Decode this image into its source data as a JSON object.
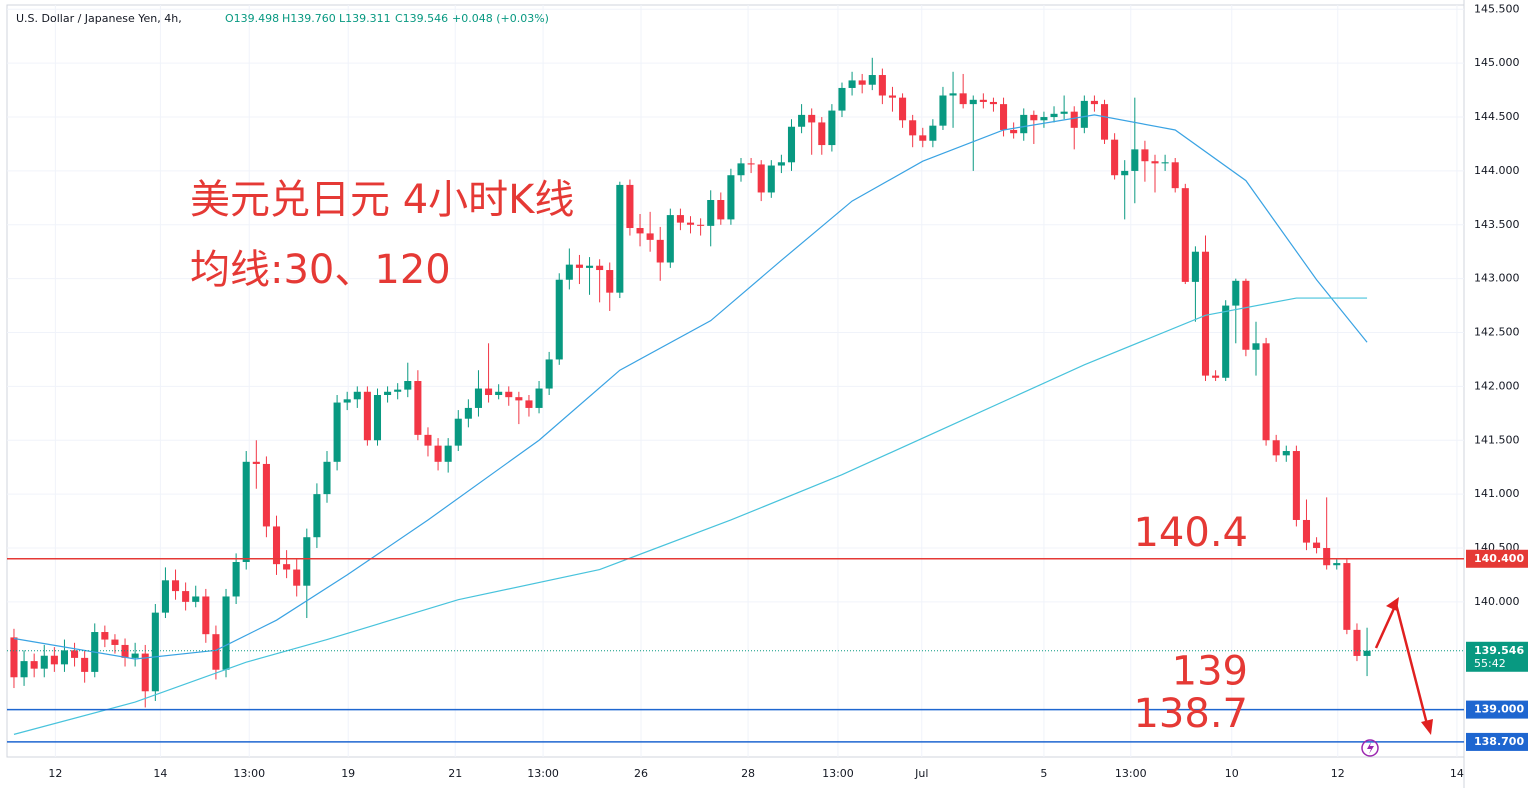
{
  "chart_data": {
    "type": "candlestick",
    "header": {
      "symbol": "U.S. Dollar / Japanese Yen, 4h,",
      "open": "O139.498",
      "high": "H139.760",
      "low": "L139.311",
      "close": "C139.546",
      "change": "+0.048 (+0.03%)"
    },
    "annotations": [
      "美元兑日元 4小时K线",
      "均线:30、120"
    ],
    "up_color": "#089981",
    "down_color": "#f23645",
    "ohlc": [
      [
        139.67,
        139.75,
        139.2,
        139.3
      ],
      [
        139.3,
        139.55,
        139.22,
        139.45
      ],
      [
        139.45,
        139.52,
        139.3,
        139.38
      ],
      [
        139.38,
        139.6,
        139.3,
        139.5
      ],
      [
        139.5,
        139.58,
        139.35,
        139.42
      ],
      [
        139.42,
        139.65,
        139.35,
        139.55
      ],
      [
        139.55,
        139.62,
        139.4,
        139.48
      ],
      [
        139.48,
        139.55,
        139.25,
        139.35
      ],
      [
        139.35,
        139.8,
        139.3,
        139.72
      ],
      [
        139.72,
        139.78,
        139.58,
        139.65
      ],
      [
        139.65,
        139.7,
        139.52,
        139.6
      ],
      [
        139.6,
        139.66,
        139.4,
        139.48
      ],
      [
        139.48,
        139.62,
        139.4,
        139.52
      ],
      [
        139.52,
        139.6,
        139.02,
        139.17
      ],
      [
        139.17,
        139.98,
        139.08,
        139.9
      ],
      [
        139.9,
        140.32,
        139.85,
        140.2
      ],
      [
        140.2,
        140.3,
        140.02,
        140.1
      ],
      [
        140.1,
        140.18,
        139.92,
        140.0
      ],
      [
        140.0,
        140.15,
        139.95,
        140.05
      ],
      [
        140.05,
        140.12,
        139.62,
        139.7
      ],
      [
        139.7,
        139.78,
        139.28,
        139.37
      ],
      [
        139.37,
        140.12,
        139.3,
        140.05
      ],
      [
        140.05,
        140.45,
        139.98,
        140.37
      ],
      [
        140.37,
        141.4,
        140.3,
        141.3
      ],
      [
        141.3,
        141.5,
        141.05,
        141.28
      ],
      [
        141.28,
        141.35,
        140.6,
        140.7
      ],
      [
        140.7,
        140.8,
        140.25,
        140.35
      ],
      [
        140.35,
        140.48,
        140.22,
        140.3
      ],
      [
        140.3,
        140.4,
        140.05,
        140.15
      ],
      [
        140.15,
        140.68,
        139.85,
        140.6
      ],
      [
        140.6,
        141.1,
        140.5,
        141.0
      ],
      [
        141.0,
        141.4,
        140.92,
        141.3
      ],
      [
        141.3,
        141.92,
        141.22,
        141.85
      ],
      [
        141.85,
        141.95,
        141.78,
        141.88
      ],
      [
        141.88,
        142.0,
        141.8,
        141.95
      ],
      [
        141.95,
        142.0,
        141.45,
        141.5
      ],
      [
        141.5,
        141.98,
        141.45,
        141.92
      ],
      [
        141.92,
        142.0,
        141.85,
        141.95
      ],
      [
        141.95,
        142.03,
        141.88,
        141.97
      ],
      [
        141.97,
        142.22,
        141.9,
        142.05
      ],
      [
        142.05,
        142.15,
        141.5,
        141.55
      ],
      [
        141.55,
        141.62,
        141.35,
        141.45
      ],
      [
        141.45,
        141.52,
        141.22,
        141.3
      ],
      [
        141.3,
        141.52,
        141.2,
        141.45
      ],
      [
        141.45,
        141.78,
        141.4,
        141.7
      ],
      [
        141.7,
        141.88,
        141.62,
        141.8
      ],
      [
        141.8,
        142.15,
        141.72,
        141.98
      ],
      [
        141.98,
        142.4,
        141.85,
        141.92
      ],
      [
        141.92,
        142.02,
        141.88,
        141.95
      ],
      [
        141.95,
        142.0,
        141.82,
        141.9
      ],
      [
        141.9,
        141.95,
        141.65,
        141.87
      ],
      [
        141.87,
        141.92,
        141.72,
        141.8
      ],
      [
        141.8,
        142.05,
        141.75,
        141.98
      ],
      [
        141.98,
        142.32,
        141.92,
        142.25
      ],
      [
        142.25,
        143.05,
        142.2,
        142.99
      ],
      [
        142.99,
        143.28,
        142.9,
        143.13
      ],
      [
        143.13,
        143.22,
        142.95,
        143.1
      ],
      [
        143.1,
        143.2,
        142.85,
        143.12
      ],
      [
        143.12,
        143.18,
        142.78,
        143.08
      ],
      [
        143.08,
        143.15,
        142.7,
        142.87
      ],
      [
        142.87,
        143.9,
        142.82,
        143.87
      ],
      [
        143.87,
        143.92,
        143.4,
        143.47
      ],
      [
        143.47,
        143.6,
        143.3,
        143.42
      ],
      [
        143.42,
        143.62,
        143.25,
        143.36
      ],
      [
        143.36,
        143.48,
        142.98,
        143.15
      ],
      [
        143.15,
        143.65,
        143.1,
        143.59
      ],
      [
        143.59,
        143.65,
        143.45,
        143.52
      ],
      [
        143.52,
        143.58,
        143.42,
        143.5
      ],
      [
        143.5,
        143.56,
        143.4,
        143.49
      ],
      [
        143.49,
        143.82,
        143.3,
        143.73
      ],
      [
        143.73,
        143.8,
        143.5,
        143.55
      ],
      [
        143.55,
        144.02,
        143.5,
        143.96
      ],
      [
        143.96,
        144.12,
        143.9,
        144.07
      ],
      [
        144.07,
        144.12,
        143.98,
        144.06
      ],
      [
        144.06,
        144.1,
        143.72,
        143.8
      ],
      [
        143.8,
        144.1,
        143.75,
        144.05
      ],
      [
        144.05,
        144.15,
        143.98,
        144.08
      ],
      [
        144.08,
        144.48,
        144.0,
        144.41
      ],
      [
        144.41,
        144.62,
        144.35,
        144.52
      ],
      [
        144.52,
        144.58,
        144.15,
        144.45
      ],
      [
        144.45,
        144.5,
        144.15,
        144.24
      ],
      [
        144.24,
        144.62,
        144.18,
        144.56
      ],
      [
        144.56,
        144.82,
        144.5,
        144.77
      ],
      [
        144.77,
        144.92,
        144.7,
        144.84
      ],
      [
        144.84,
        144.9,
        144.72,
        144.8
      ],
      [
        144.8,
        145.05,
        144.75,
        144.89
      ],
      [
        144.89,
        144.95,
        144.62,
        144.7
      ],
      [
        144.7,
        144.78,
        144.55,
        144.68
      ],
      [
        144.68,
        144.72,
        144.4,
        144.47
      ],
      [
        144.47,
        144.52,
        144.22,
        144.33
      ],
      [
        144.33,
        144.4,
        144.22,
        144.28
      ],
      [
        144.28,
        144.48,
        144.22,
        144.42
      ],
      [
        144.42,
        144.78,
        144.38,
        144.7
      ],
      [
        144.7,
        144.92,
        144.4,
        144.72
      ],
      [
        144.72,
        144.9,
        144.58,
        144.62
      ],
      [
        144.62,
        144.7,
        144.0,
        144.66
      ],
      [
        144.66,
        144.72,
        144.58,
        144.64
      ],
      [
        144.64,
        144.68,
        144.55,
        144.62
      ],
      [
        144.62,
        144.68,
        144.32,
        144.38
      ],
      [
        144.38,
        144.45,
        144.3,
        144.35
      ],
      [
        144.35,
        144.58,
        144.28,
        144.52
      ],
      [
        144.52,
        144.56,
        144.25,
        144.47
      ],
      [
        144.47,
        144.55,
        144.4,
        144.5
      ],
      [
        144.5,
        144.6,
        144.45,
        144.53
      ],
      [
        144.53,
        144.7,
        144.48,
        144.55
      ],
      [
        144.55,
        144.6,
        144.2,
        144.4
      ],
      [
        144.4,
        144.7,
        144.35,
        144.65
      ],
      [
        144.65,
        144.7,
        144.55,
        144.62
      ],
      [
        144.62,
        144.66,
        144.25,
        144.29
      ],
      [
        144.29,
        144.35,
        143.92,
        143.96
      ],
      [
        143.96,
        144.1,
        143.55,
        144.0
      ],
      [
        144.0,
        144.68,
        143.7,
        144.2
      ],
      [
        144.2,
        144.28,
        143.9,
        144.09
      ],
      [
        144.09,
        144.15,
        143.8,
        144.07
      ],
      [
        144.07,
        144.15,
        144.0,
        144.08
      ],
      [
        144.08,
        144.12,
        143.8,
        143.84
      ],
      [
        143.84,
        143.88,
        142.95,
        142.97
      ],
      [
        142.97,
        143.3,
        142.6,
        143.25
      ],
      [
        143.25,
        143.4,
        142.05,
        142.1
      ],
      [
        142.1,
        142.15,
        142.05,
        142.08
      ],
      [
        142.08,
        142.8,
        142.05,
        142.75
      ],
      [
        142.75,
        143.0,
        142.4,
        142.98
      ],
      [
        142.98,
        143.0,
        142.28,
        142.34
      ],
      [
        142.34,
        142.6,
        142.1,
        142.4
      ],
      [
        142.4,
        142.45,
        141.45,
        141.5
      ],
      [
        141.5,
        141.55,
        141.3,
        141.36
      ],
      [
        141.36,
        141.45,
        141.3,
        141.4
      ],
      [
        141.4,
        141.45,
        140.7,
        140.76
      ],
      [
        140.76,
        140.95,
        140.48,
        140.55
      ],
      [
        140.55,
        140.6,
        140.45,
        140.5
      ],
      [
        140.5,
        140.97,
        140.3,
        140.34
      ],
      [
        140.34,
        140.4,
        140.3,
        140.36
      ],
      [
        140.36,
        140.4,
        139.7,
        139.74
      ],
      [
        139.74,
        139.8,
        139.45,
        139.498
      ],
      [
        139.498,
        139.76,
        139.311,
        139.546
      ]
    ],
    "ma": [
      {
        "color": "#3aa3e3",
        "x": [
          0,
          12,
          20,
          26,
          33,
          41,
          52,
          60,
          69,
          76,
          83,
          90,
          98,
          107,
          115,
          122,
          129,
          134
        ],
        "values": [
          139.66,
          139.47,
          139.55,
          139.83,
          140.25,
          140.76,
          141.5,
          142.15,
          142.61,
          143.17,
          143.72,
          144.09,
          144.38,
          144.52,
          144.38,
          143.91,
          142.99,
          142.41
        ]
      },
      {
        "color": "#48c3dc",
        "x": [
          0,
          12,
          23,
          31,
          44,
          58,
          71,
          82,
          94,
          106,
          118,
          127,
          134
        ],
        "values": [
          138.77,
          139.07,
          139.44,
          139.65,
          140.02,
          140.3,
          140.76,
          141.18,
          141.69,
          142.2,
          142.66,
          142.82,
          142.82
        ]
      }
    ],
    "levels": [
      {
        "value": 140.4,
        "label": "140.400",
        "note": "140.4",
        "color": "#e53935"
      },
      {
        "value": 139.0,
        "label": "139.000",
        "note": "139",
        "color": "#1e66d0"
      },
      {
        "value": 138.7,
        "label": "138.700",
        "note": "138.7",
        "color": "#1e66d0"
      }
    ],
    "last_price": {
      "value": 139.546,
      "label": "139.546",
      "countdown": "55:42",
      "color": "#089981"
    },
    "xlim": [
      -0.69,
      143.6
    ],
    "xticks": [
      {
        "value": 4.1,
        "label": "12"
      },
      {
        "value": 14.5,
        "label": "14"
      },
      {
        "value": 23.3,
        "label": "13:00"
      },
      {
        "value": 33.1,
        "label": "19"
      },
      {
        "value": 43.7,
        "label": "21"
      },
      {
        "value": 52.4,
        "label": "13:00"
      },
      {
        "value": 62.1,
        "label": "26"
      },
      {
        "value": 72.7,
        "label": "28"
      },
      {
        "value": 81.6,
        "label": "13:00"
      },
      {
        "value": 89.9,
        "label": "Jul"
      },
      {
        "value": 102,
        "label": "5"
      },
      {
        "value": 110.6,
        "label": "13:00"
      },
      {
        "value": 120.6,
        "label": "10"
      },
      {
        "value": 131.1,
        "label": "12"
      },
      {
        "value": 142.9,
        "label": "14"
      }
    ],
    "ylim": [
      138.56,
      145.54
    ],
    "yticks": [
      {
        "value": 145.5,
        "label": "145.500"
      },
      {
        "value": 145,
        "label": "145.000"
      },
      {
        "value": 144.5,
        "label": "144.500"
      },
      {
        "value": 144,
        "label": "144.000"
      },
      {
        "value": 143.5,
        "label": "143.500"
      },
      {
        "value": 143,
        "label": "143.000"
      },
      {
        "value": 142.5,
        "label": "142.500"
      },
      {
        "value": 142,
        "label": "142.000"
      },
      {
        "value": 141.5,
        "label": "141.500"
      },
      {
        "value": 141,
        "label": "141.000"
      },
      {
        "value": 140.5,
        "label": "140.500"
      },
      {
        "value": 140,
        "label": "140.000"
      }
    ],
    "grid": true
  }
}
